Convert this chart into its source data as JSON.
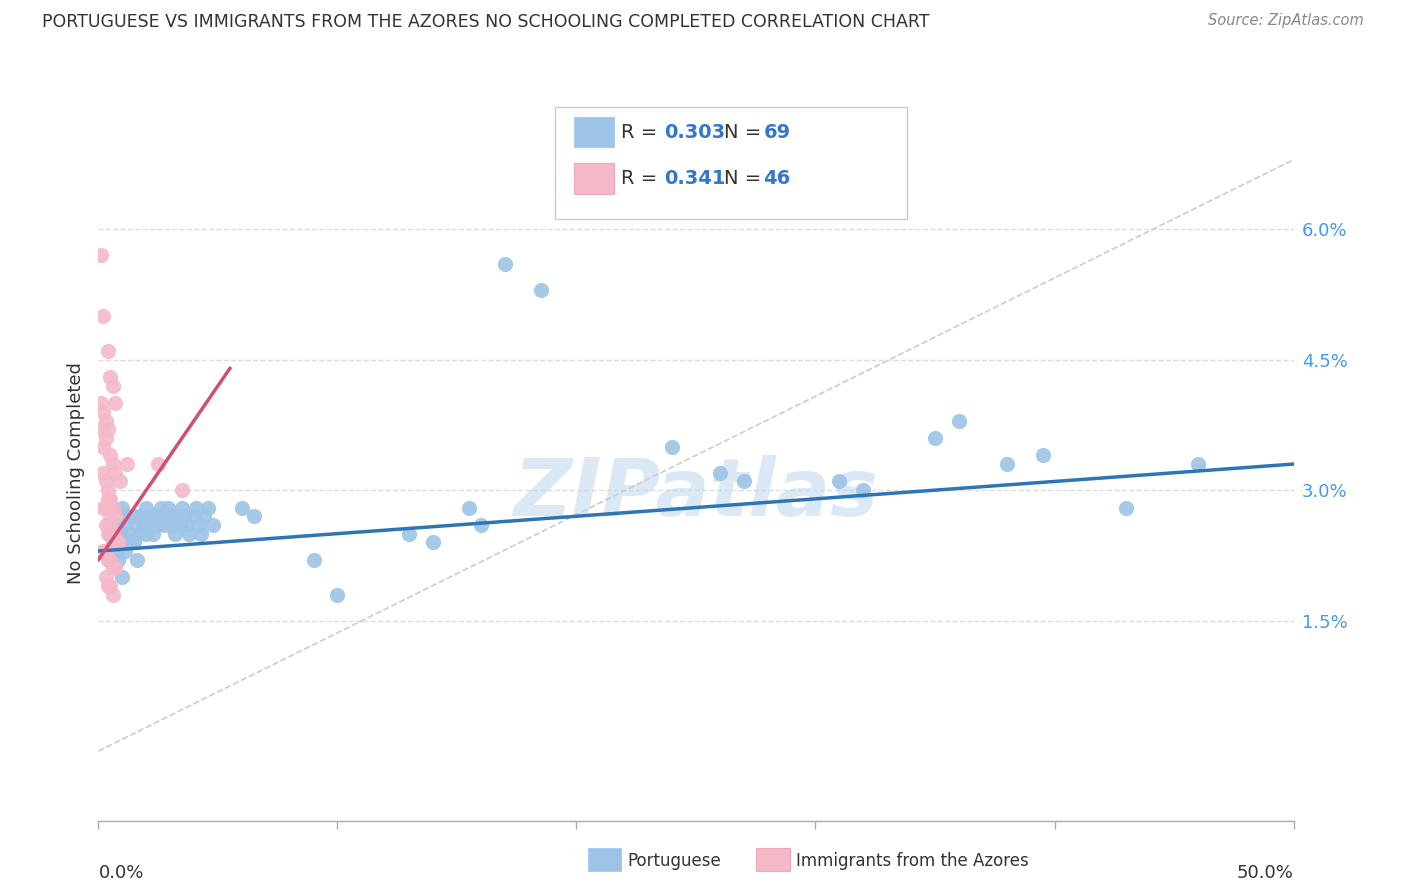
{
  "title": "PORTUGUESE VS IMMIGRANTS FROM THE AZORES NO SCHOOLING COMPLETED CORRELATION CHART",
  "source": "Source: ZipAtlas.com",
  "ylabel": "No Schooling Completed",
  "yticks": [
    "1.5%",
    "3.0%",
    "4.5%",
    "6.0%"
  ],
  "ytick_vals": [
    0.015,
    0.03,
    0.045,
    0.06
  ],
  "xlim": [
    0.0,
    0.5
  ],
  "ylim": [
    -0.008,
    0.072
  ],
  "legend_blue_R": "0.303",
  "legend_blue_N": "69",
  "legend_pink_R": "0.341",
  "legend_pink_N": "46",
  "blue_color": "#9dc3e6",
  "pink_color": "#f4b8c8",
  "line_blue": "#2e75b6",
  "line_pink": "#d05070",
  "diag_color": "#cccccc",
  "watermark": "ZIPatlas",
  "blue_scatter": [
    [
      0.005,
      0.025
    ],
    [
      0.006,
      0.024
    ],
    [
      0.007,
      0.023
    ],
    [
      0.008,
      0.026
    ],
    [
      0.008,
      0.022
    ],
    [
      0.009,
      0.025
    ],
    [
      0.01,
      0.028
    ],
    [
      0.01,
      0.024
    ],
    [
      0.01,
      0.02
    ],
    [
      0.011,
      0.026
    ],
    [
      0.011,
      0.023
    ],
    [
      0.012,
      0.027
    ],
    [
      0.013,
      0.025
    ],
    [
      0.014,
      0.024
    ],
    [
      0.015,
      0.027
    ],
    [
      0.015,
      0.024
    ],
    [
      0.016,
      0.026
    ],
    [
      0.016,
      0.022
    ],
    [
      0.017,
      0.025
    ],
    [
      0.018,
      0.027
    ],
    [
      0.019,
      0.026
    ],
    [
      0.02,
      0.028
    ],
    [
      0.02,
      0.025
    ],
    [
      0.021,
      0.027
    ],
    [
      0.022,
      0.026
    ],
    [
      0.023,
      0.025
    ],
    [
      0.024,
      0.027
    ],
    [
      0.025,
      0.026
    ],
    [
      0.026,
      0.028
    ],
    [
      0.027,
      0.027
    ],
    [
      0.028,
      0.026
    ],
    [
      0.029,
      0.028
    ],
    [
      0.03,
      0.027
    ],
    [
      0.031,
      0.026
    ],
    [
      0.032,
      0.025
    ],
    [
      0.033,
      0.027
    ],
    [
      0.034,
      0.026
    ],
    [
      0.035,
      0.028
    ],
    [
      0.036,
      0.027
    ],
    [
      0.037,
      0.026
    ],
    [
      0.038,
      0.025
    ],
    [
      0.04,
      0.027
    ],
    [
      0.041,
      0.028
    ],
    [
      0.042,
      0.026
    ],
    [
      0.043,
      0.025
    ],
    [
      0.044,
      0.027
    ],
    [
      0.046,
      0.028
    ],
    [
      0.048,
      0.026
    ],
    [
      0.06,
      0.028
    ],
    [
      0.065,
      0.027
    ],
    [
      0.09,
      0.022
    ],
    [
      0.1,
      0.018
    ],
    [
      0.13,
      0.025
    ],
    [
      0.14,
      0.024
    ],
    [
      0.155,
      0.028
    ],
    [
      0.16,
      0.026
    ],
    [
      0.17,
      0.056
    ],
    [
      0.185,
      0.053
    ],
    [
      0.24,
      0.035
    ],
    [
      0.26,
      0.032
    ],
    [
      0.27,
      0.031
    ],
    [
      0.31,
      0.031
    ],
    [
      0.32,
      0.03
    ],
    [
      0.35,
      0.036
    ],
    [
      0.36,
      0.038
    ],
    [
      0.38,
      0.033
    ],
    [
      0.395,
      0.034
    ],
    [
      0.43,
      0.028
    ],
    [
      0.46,
      0.033
    ]
  ],
  "pink_scatter": [
    [
      0.001,
      0.057
    ],
    [
      0.002,
      0.05
    ],
    [
      0.004,
      0.046
    ],
    [
      0.005,
      0.043
    ],
    [
      0.006,
      0.042
    ],
    [
      0.007,
      0.04
    ],
    [
      0.001,
      0.04
    ],
    [
      0.001,
      0.037
    ],
    [
      0.002,
      0.039
    ],
    [
      0.003,
      0.038
    ],
    [
      0.002,
      0.035
    ],
    [
      0.003,
      0.036
    ],
    [
      0.004,
      0.037
    ],
    [
      0.005,
      0.034
    ],
    [
      0.006,
      0.033
    ],
    [
      0.007,
      0.032
    ],
    [
      0.002,
      0.032
    ],
    [
      0.003,
      0.031
    ],
    [
      0.004,
      0.03
    ],
    [
      0.005,
      0.029
    ],
    [
      0.002,
      0.028
    ],
    [
      0.003,
      0.028
    ],
    [
      0.004,
      0.029
    ],
    [
      0.005,
      0.027
    ],
    [
      0.006,
      0.028
    ],
    [
      0.007,
      0.027
    ],
    [
      0.003,
      0.026
    ],
    [
      0.004,
      0.025
    ],
    [
      0.005,
      0.026
    ],
    [
      0.006,
      0.025
    ],
    [
      0.007,
      0.024
    ],
    [
      0.008,
      0.024
    ],
    [
      0.002,
      0.023
    ],
    [
      0.003,
      0.023
    ],
    [
      0.004,
      0.022
    ],
    [
      0.005,
      0.022
    ],
    [
      0.006,
      0.021
    ],
    [
      0.007,
      0.021
    ],
    [
      0.003,
      0.02
    ],
    [
      0.004,
      0.019
    ],
    [
      0.005,
      0.019
    ],
    [
      0.006,
      0.018
    ],
    [
      0.009,
      0.031
    ],
    [
      0.012,
      0.033
    ],
    [
      0.025,
      0.033
    ],
    [
      0.035,
      0.03
    ]
  ],
  "blue_trend_x": [
    0.0,
    0.5
  ],
  "blue_trend_y": [
    0.023,
    0.033
  ],
  "pink_trend_x": [
    0.0,
    0.055
  ],
  "pink_trend_y": [
    0.022,
    0.044
  ]
}
